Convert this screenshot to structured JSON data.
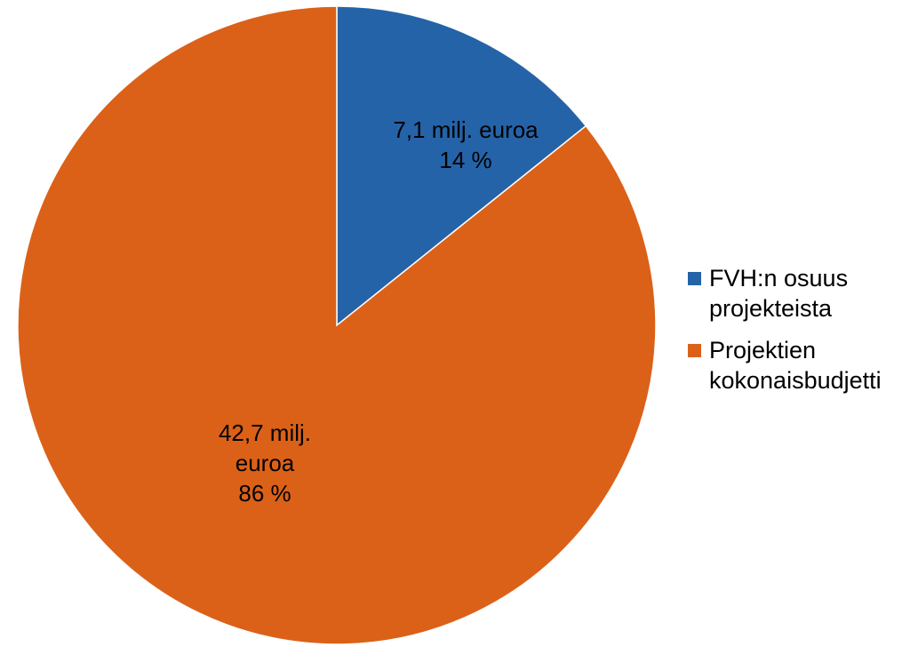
{
  "chart_data": {
    "type": "pie",
    "title": "",
    "start_angle_deg": 0,
    "direction": "clockwise",
    "legend_position": "right",
    "slices": [
      {
        "name": "FVH:n osuus projekteista",
        "value": 7.1,
        "percent": 14,
        "color": "#2563A8",
        "label_lines": [
          "7,1 milj. euroa",
          "14 %"
        ]
      },
      {
        "name": "Projektien kokonaisbudjetti",
        "value": 42.7,
        "percent": 86,
        "color": "#DB6118",
        "label_lines": [
          "42,7 milj.",
          "euroa",
          "86 %"
        ]
      }
    ]
  },
  "legend": {
    "items": [
      {
        "label": "FVH:n osuus\nprojekteista",
        "color": "#2563A8"
      },
      {
        "label": "Projektien\nkokonaisbudjetti",
        "color": "#DB6118"
      }
    ]
  }
}
